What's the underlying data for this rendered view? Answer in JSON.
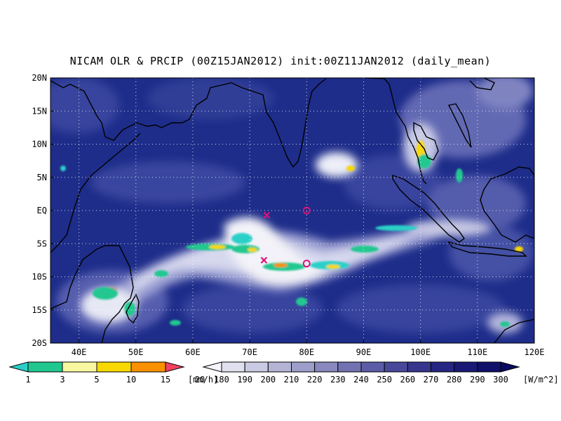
{
  "title": "NICAM OLR & PRCIP (00Z15JAN2012) init:00Z11JAN2012 (daily_mean)",
  "map": {
    "lon_labels": [
      "40E",
      "50E",
      "60E",
      "70E",
      "80E",
      "90E",
      "100E",
      "110E",
      "120E"
    ],
    "lat_labels": [
      "20N",
      "15N",
      "10N",
      "5N",
      "EQ",
      "5S",
      "10S",
      "15S",
      "20S"
    ],
    "grid": true,
    "ocean_color": "#1e2d8a",
    "markers": [
      {
        "name": "magenta-x-marker-north",
        "lon": 73,
        "lat": -0.7,
        "symbol": "x"
      },
      {
        "name": "magenta-o-marker-north",
        "lon": 80,
        "lat": 0,
        "symbol": "o"
      },
      {
        "name": "magenta-x-marker-south",
        "lon": 72.5,
        "lat": -7.5,
        "symbol": "x"
      },
      {
        "name": "magenta-o-marker-south",
        "lon": 80,
        "lat": -8,
        "symbol": "o"
      }
    ]
  },
  "precip_colorbar": {
    "labels": [
      "1",
      "3",
      "5",
      "10",
      "15",
      "20"
    ],
    "unit": "[mm/h]",
    "colors": [
      "#2ad0c8",
      "#20c890",
      "#f8f8a0",
      "#f8d800",
      "#f89000",
      "#f04060"
    ]
  },
  "olr_colorbar": {
    "labels": [
      "180",
      "190",
      "200",
      "210",
      "220",
      "230",
      "240",
      "250",
      "260",
      "270",
      "280",
      "290",
      "300"
    ],
    "unit": "[W/m^2]",
    "colors": [
      "#f4f4fa",
      "#e0e0ee",
      "#cacae2",
      "#b4b4d6",
      "#9e9eca",
      "#8888be",
      "#7272b2",
      "#5c5ca6",
      "#48489a",
      "#36368e",
      "#262682",
      "#1a1a76",
      "#10106a",
      "#0a0a60"
    ]
  }
}
